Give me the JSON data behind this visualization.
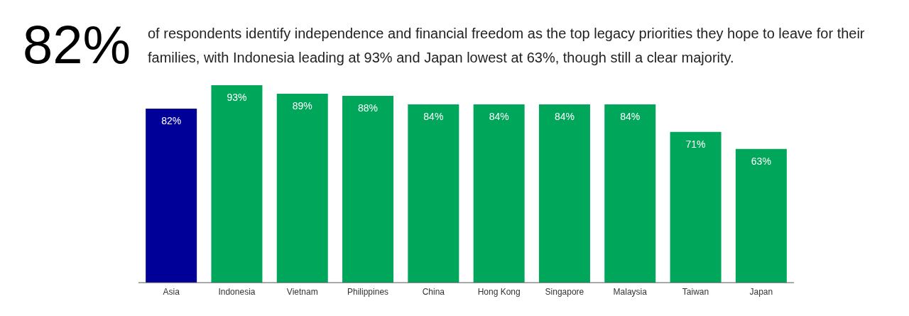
{
  "chart_data": {
    "type": "bar",
    "title": "82%",
    "subtitle": "of respondents identify independence and financial freedom as the top legacy priorities they hope to leave for their families, with Indonesia leading at 93% and Japan lowest at 63%, though still a clear majority.",
    "categories": [
      "Asia",
      "Indonesia",
      "Vietnam",
      "Philippines",
      "China",
      "Hong Kong",
      "Singapore",
      "Malaysia",
      "Taiwan",
      "Japan"
    ],
    "values": [
      82,
      93,
      89,
      88,
      84,
      84,
      84,
      84,
      71,
      63
    ],
    "value_labels": [
      "82%",
      "93%",
      "89%",
      "88%",
      "84%",
      "84%",
      "84%",
      "84%",
      "71%",
      "63%"
    ],
    "colors": [
      "#000099",
      "#00a659",
      "#00a659",
      "#00a659",
      "#00a659",
      "#00a659",
      "#00a659",
      "#00a659",
      "#00a659",
      "#00a659"
    ],
    "grid": false,
    "legend": false
  }
}
